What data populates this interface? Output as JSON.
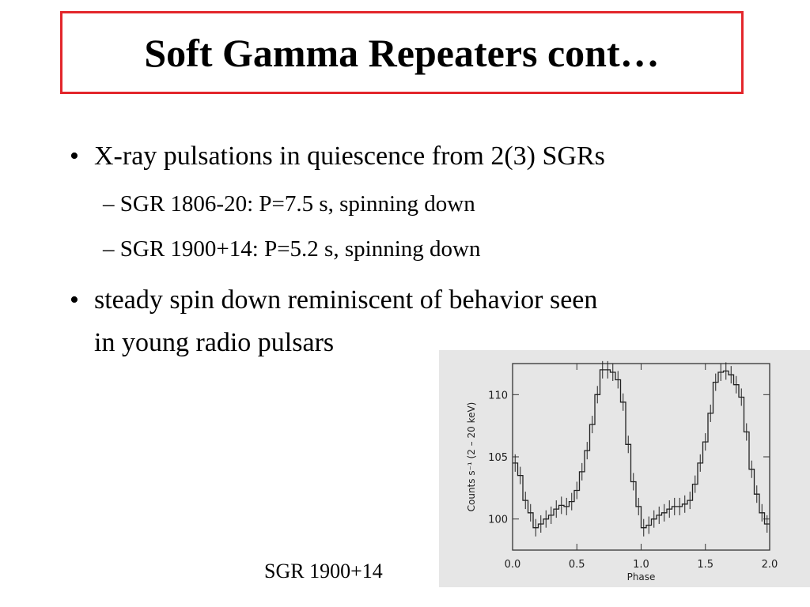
{
  "slide": {
    "title": "Soft Gamma Repeaters cont…",
    "bullets": [
      {
        "text": "X-ray pulsations in quiescence from 2(3) SGRs",
        "sub": [
          "– SGR 1806-20: P=7.5 s, spinning down",
          "– SGR 1900+14: P=5.2 s, spinning down"
        ]
      },
      {
        "lines": [
          "steady spin down reminiscent of behavior seen",
          "in young radio pulsars"
        ]
      }
    ],
    "bullet_glyph": "•",
    "caption": "SGR 1900+14",
    "colors": {
      "title_border": "#e3262b",
      "figure_bg": "#e6e6e6"
    }
  },
  "chart_data": {
    "type": "line",
    "xlabel": "Phase",
    "ylabel": "Counts s⁻¹ (2 – 20 keV)",
    "x_ticks": [
      "0.0",
      "0.5",
      "1.0",
      "1.5",
      "2.0"
    ],
    "y_ticks": [
      "100",
      "105",
      "110"
    ],
    "xlim": [
      0,
      2
    ],
    "ylim": [
      97.5,
      112.5
    ],
    "series": [
      {
        "x": [
          0.0,
          0.04,
          0.08,
          0.12,
          0.16,
          0.2,
          0.24,
          0.28,
          0.32,
          0.36,
          0.4,
          0.44,
          0.48,
          0.52,
          0.56,
          0.6,
          0.64,
          0.68,
          0.72,
          0.76,
          0.8,
          0.84,
          0.88,
          0.92,
          0.96,
          1.0,
          1.04,
          1.08,
          1.12,
          1.16,
          1.2,
          1.24,
          1.28,
          1.32,
          1.36,
          1.4,
          1.44,
          1.48,
          1.52,
          1.56,
          1.6,
          1.64,
          1.68,
          1.72,
          1.76,
          1.8,
          1.84,
          1.88,
          1.92,
          1.96
        ],
        "values": [
          104.5,
          103.5,
          101.5,
          100.5,
          99.3,
          99.6,
          100.0,
          100.3,
          100.8,
          101.1,
          101.0,
          101.4,
          102.3,
          103.8,
          105.5,
          107.6,
          110.0,
          112.0,
          112.0,
          111.8,
          111.2,
          109.4,
          106.0,
          103.0,
          101.0,
          99.3,
          99.5,
          100.0,
          100.3,
          100.5,
          100.8,
          101.0,
          101.0,
          101.2,
          101.5,
          102.8,
          104.5,
          106.2,
          108.5,
          111.0,
          111.8,
          111.9,
          111.6,
          110.8,
          109.8,
          107.0,
          104.0,
          102.0,
          100.5,
          99.6
        ]
      }
    ]
  }
}
